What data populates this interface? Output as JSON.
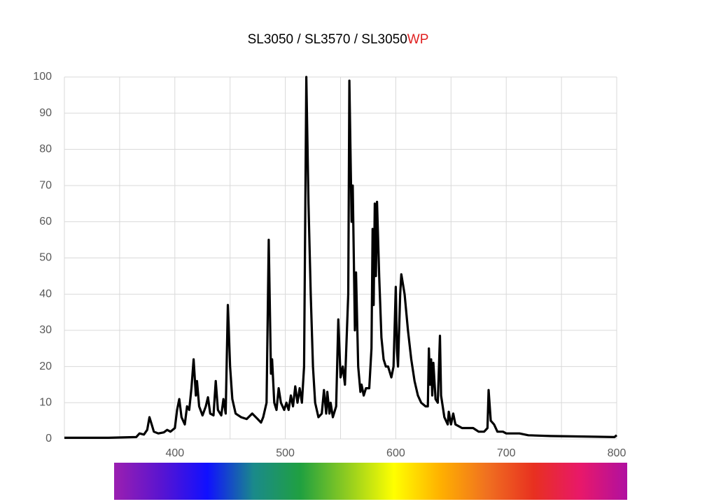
{
  "chart_data": {
    "type": "line",
    "title": "SL3050  /  SL3570  /  SL3050",
    "title_suffix": "WP",
    "title_suffix_color": "#e02020",
    "color": "#000000",
    "xlim": [
      300,
      800
    ],
    "ylim": [
      0,
      100
    ],
    "xticks": [
      400,
      500,
      600,
      700,
      800
    ],
    "xgrid": [
      350,
      400,
      450,
      500,
      550,
      600,
      650,
      700,
      750,
      800
    ],
    "yticks": [
      0,
      10,
      20,
      30,
      40,
      50,
      60,
      70,
      80,
      90,
      100
    ],
    "grid": true,
    "spectrum_colors": [
      "#9b1fb0",
      "#5a14d0",
      "#1010ff",
      "#1a8a8a",
      "#20a040",
      "#90cc20",
      "#ffff00",
      "#ffb000",
      "#f07020",
      "#e83020",
      "#e8186a",
      "#b010a0"
    ],
    "x": [
      300,
      340,
      365,
      368,
      372,
      375,
      377,
      379,
      381,
      385,
      390,
      393,
      396,
      400,
      402,
      404,
      406,
      409,
      411,
      413,
      415,
      417,
      419,
      420,
      422,
      425,
      428,
      430,
      432,
      435,
      437,
      439,
      442,
      444,
      446,
      448,
      450,
      452,
      455,
      460,
      465,
      470,
      475,
      478,
      480,
      483,
      485,
      487,
      488,
      490,
      492,
      494,
      496,
      499,
      501,
      503,
      505,
      507,
      509,
      511,
      513,
      515,
      517,
      519,
      521,
      523,
      525,
      527,
      530,
      533,
      535,
      537,
      538,
      540,
      541,
      543,
      546,
      548,
      550,
      552,
      554,
      557,
      558,
      560,
      561,
      563,
      564,
      566,
      568,
      569,
      571,
      573,
      576,
      578,
      579,
      580,
      581,
      582,
      583,
      585,
      587,
      589,
      591,
      593,
      596,
      598,
      600,
      601,
      602,
      604,
      605,
      608,
      611,
      614,
      617,
      620,
      623,
      627,
      629,
      630,
      631,
      632,
      633,
      634,
      636,
      638,
      640,
      641,
      644,
      647,
      648,
      650,
      652,
      654,
      660,
      670,
      675,
      680,
      683,
      684,
      686,
      689,
      692,
      697,
      700,
      705,
      712,
      720,
      740,
      760,
      780,
      798,
      800
    ],
    "values": [
      0.3,
      0.3,
      0.5,
      1.5,
      1.2,
      2.5,
      6,
      4,
      2,
      1.5,
      1.8,
      2.5,
      2,
      3,
      8,
      11,
      6,
      4,
      9,
      8,
      14,
      22,
      12,
      16,
      9,
      6.5,
      9,
      11.5,
      7,
      6.5,
      16,
      8,
      6.5,
      11,
      7,
      37,
      20,
      11,
      7,
      6,
      5.5,
      7,
      5.5,
      4.5,
      6,
      10,
      55,
      18,
      22,
      10,
      8,
      14,
      10,
      8,
      10,
      8,
      12,
      9,
      14.5,
      10,
      14,
      10,
      20,
      100,
      65,
      40,
      20,
      10,
      6,
      7,
      13.5,
      7,
      13,
      7,
      10,
      6,
      9,
      33,
      17,
      20,
      15,
      40,
      99,
      60,
      70,
      30,
      46,
      20,
      13,
      15,
      12,
      14,
      14,
      25,
      58,
      37,
      65,
      45,
      65.5,
      45,
      28,
      22,
      20,
      20,
      17,
      20,
      42,
      25,
      20,
      40,
      45.5,
      40,
      30,
      22,
      16,
      12,
      10,
      9,
      9,
      25,
      15,
      22,
      12,
      21,
      11,
      10,
      28.5,
      12,
      6,
      4,
      7.5,
      4,
      7,
      4,
      3,
      3,
      2,
      2,
      3,
      13.5,
      5,
      4,
      2,
      2,
      1.5,
      1.5,
      1.5,
      1,
      0.8,
      0.7,
      0.6,
      0.5,
      1
    ]
  }
}
